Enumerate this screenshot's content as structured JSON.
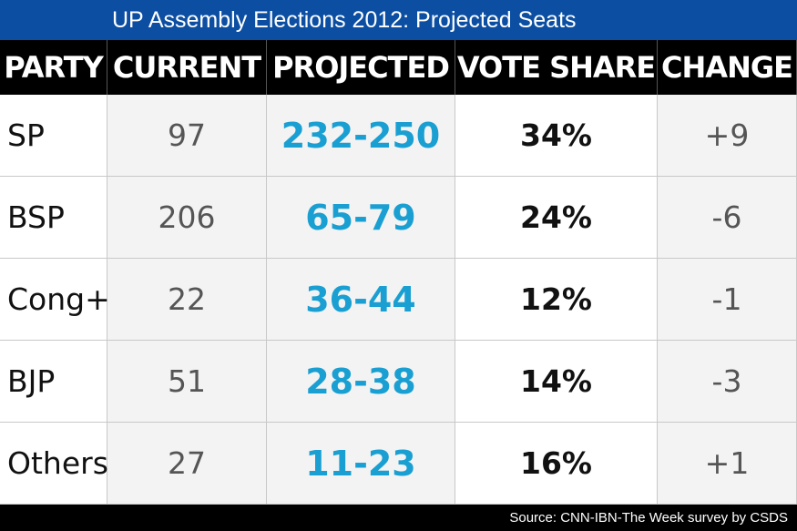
{
  "header": {
    "title": "UP Assembly Elections 2012: Projected Seats"
  },
  "table": {
    "columns": [
      "PARTY",
      "CURRENT",
      "PROJECTED",
      "VOTE SHARE",
      "CHANGE"
    ],
    "rows": [
      [
        "SP",
        "97",
        "232-250",
        "34%",
        "+9"
      ],
      [
        "BSP",
        "206",
        "65-79",
        "24%",
        "-6"
      ],
      [
        "Cong+",
        "22",
        "36-44",
        "12%",
        "-1"
      ],
      [
        "BJP",
        "51",
        "28-38",
        "14%",
        "-3"
      ],
      [
        "Others",
        "27",
        "11-23",
        "16%",
        "+1"
      ]
    ]
  },
  "footer": {
    "source": "Source: CNN-IBN-The Week survey by CSDS"
  }
}
